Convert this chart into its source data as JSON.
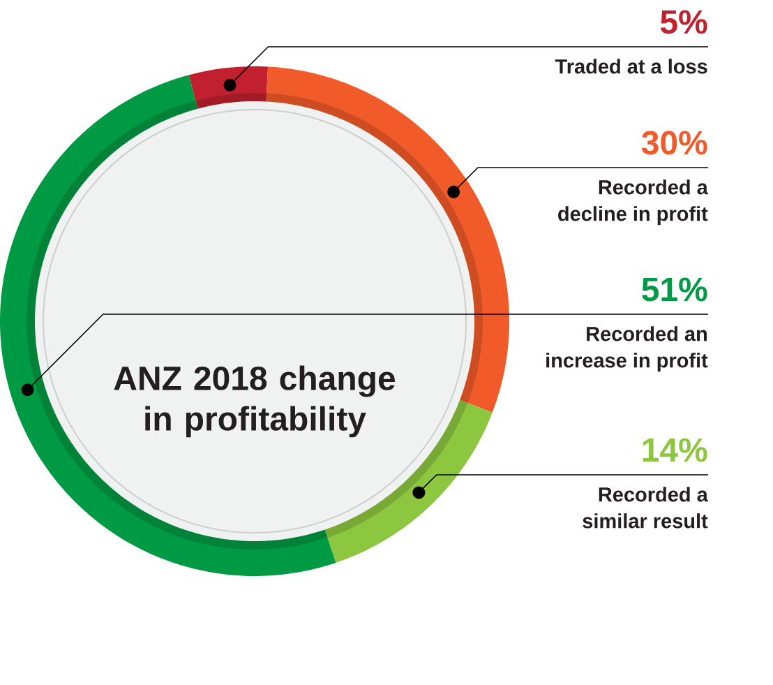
{
  "chart_data": {
    "type": "donut",
    "title": "ANZ 2018 change in profitability",
    "categories": [
      "Traded at a loss",
      "Recorded a decline in profit",
      "Recorded a similar result",
      "Recorded an increase in profit"
    ],
    "values": [
      5,
      30,
      14,
      51
    ],
    "value_labels": [
      "5%",
      "30%",
      "14%",
      "51%"
    ],
    "colors": [
      "#c1202f",
      "#f15a29",
      "#8dc63f",
      "#009a44"
    ]
  }
}
